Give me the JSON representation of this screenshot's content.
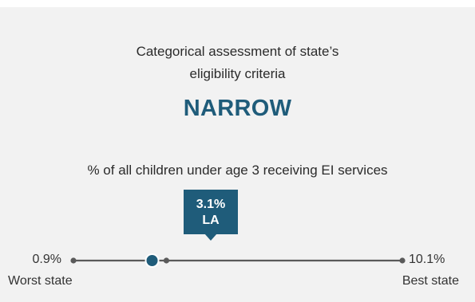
{
  "title_line1": "Categorical assessment of state’s",
  "title_line2": "eligibility criteria",
  "assessment": "NARROW",
  "metric_label": "% of all children under age 3 receiving EI services",
  "colors": {
    "accent": "#1f5c7a",
    "track": "#5a5a5a",
    "panel": "#f2f2f2"
  },
  "chart_data": {
    "type": "scatter",
    "title": "% of all children under age 3 receiving EI services",
    "xlim": [
      0.9,
      10.1
    ],
    "min": {
      "value": 0.9,
      "label": "0.9%",
      "caption": "Worst state"
    },
    "max": {
      "value": 10.1,
      "label": "10.1%",
      "caption": "Best state"
    },
    "highlight": {
      "state": "LA",
      "value": 3.1,
      "label": "3.1%"
    },
    "marks": [
      {
        "value": 3.5
      }
    ]
  }
}
